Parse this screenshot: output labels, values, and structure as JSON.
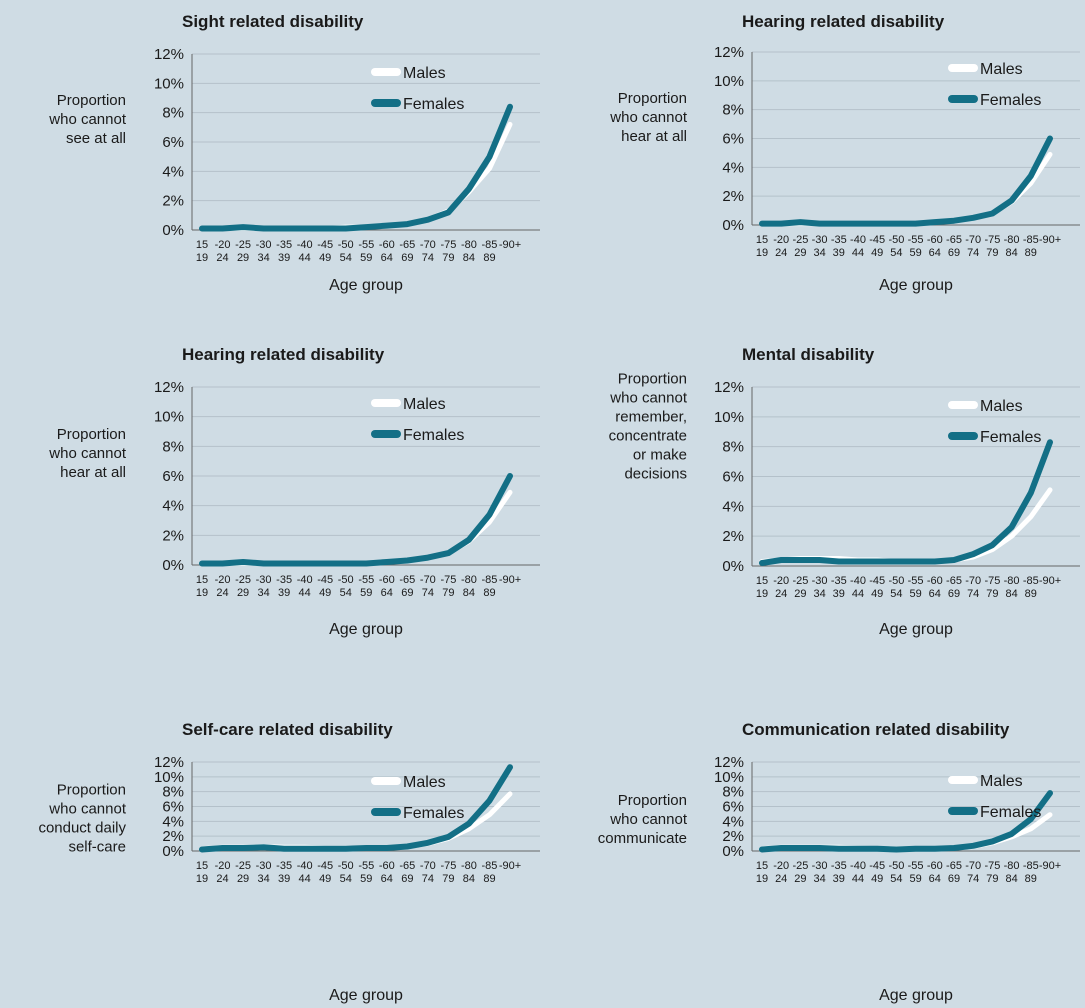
{
  "chart_data": [
    {
      "type": "line",
      "title": "Sight related disability",
      "ylabel": [
        "Proportion",
        "who cannot",
        "see at all"
      ],
      "xlabel": "Age group",
      "x_top": [
        "15",
        "-20",
        "-25",
        "-30",
        "-35",
        "-40",
        "-45",
        "-50",
        "-55",
        "-60",
        "-65",
        "-70",
        "-75",
        "-80",
        "-85",
        "-90+"
      ],
      "x_bottom": [
        "19",
        "24",
        "29",
        "34",
        "39",
        "44",
        "49",
        "54",
        "59",
        "64",
        "69",
        "74",
        "79",
        "84",
        "89",
        ""
      ],
      "yticks": [
        "0%",
        "2%",
        "4%",
        "6%",
        "8%",
        "10%",
        "12%"
      ],
      "ylim": [
        0,
        12
      ],
      "legend": [
        "Males",
        "Females"
      ],
      "series": [
        {
          "name": "Males",
          "color": "#ffffff",
          "values": [
            0.1,
            0.1,
            0.1,
            0.1,
            0.1,
            0.1,
            0.1,
            0.2,
            0.2,
            0.3,
            0.4,
            0.7,
            1.3,
            2.6,
            4.2,
            7.2
          ]
        },
        {
          "name": "Females",
          "color": "#136f86",
          "values": [
            0.1,
            0.1,
            0.2,
            0.1,
            0.1,
            0.1,
            0.1,
            0.1,
            0.2,
            0.3,
            0.4,
            0.7,
            1.2,
            2.8,
            5.0,
            8.4
          ]
        }
      ]
    },
    {
      "type": "line",
      "title": "Hearing related disability",
      "ylabel": [
        "Proportion",
        "who cannot",
        "hear at all"
      ],
      "xlabel": "Age group",
      "x_top": [
        "15",
        "-20",
        "-25",
        "-30",
        "-35",
        "-40",
        "-45",
        "-50",
        "-55",
        "-60",
        "-65",
        "-70",
        "-75",
        "-80",
        "-85",
        "-90+"
      ],
      "x_bottom": [
        "19",
        "24",
        "29",
        "34",
        "39",
        "44",
        "49",
        "54",
        "59",
        "64",
        "69",
        "74",
        "79",
        "84",
        "89",
        ""
      ],
      "yticks": [
        "0%",
        "2%",
        "4%",
        "6%",
        "8%",
        "10%",
        "12%"
      ],
      "ylim": [
        0,
        12
      ],
      "legend": [
        "Males",
        "Females"
      ],
      "series": [
        {
          "name": "Males",
          "color": "#ffffff",
          "values": [
            0.1,
            0.1,
            0.1,
            0.1,
            0.1,
            0.1,
            0.1,
            0.1,
            0.1,
            0.2,
            0.3,
            0.5,
            0.8,
            1.6,
            2.9,
            4.9
          ]
        },
        {
          "name": "Females",
          "color": "#136f86",
          "values": [
            0.1,
            0.1,
            0.2,
            0.1,
            0.1,
            0.1,
            0.1,
            0.1,
            0.1,
            0.2,
            0.3,
            0.5,
            0.8,
            1.7,
            3.4,
            6.0
          ]
        }
      ]
    },
    {
      "type": "line",
      "title": "Hearing related disability",
      "ylabel": [
        "Proportion",
        "who cannot",
        "hear at all"
      ],
      "xlabel": "Age group",
      "x_top": [
        "15",
        "-20",
        "-25",
        "-30",
        "-35",
        "-40",
        "-45",
        "-50",
        "-55",
        "-60",
        "-65",
        "-70",
        "-75",
        "-80",
        "-85",
        "-90+"
      ],
      "x_bottom": [
        "19",
        "24",
        "29",
        "34",
        "39",
        "44",
        "49",
        "54",
        "59",
        "64",
        "69",
        "74",
        "79",
        "84",
        "89",
        ""
      ],
      "yticks": [
        "0%",
        "2%",
        "4%",
        "6%",
        "8%",
        "10%",
        "12%"
      ],
      "ylim": [
        0,
        12
      ],
      "legend": [
        "Males",
        "Females"
      ],
      "series": [
        {
          "name": "Males",
          "color": "#ffffff",
          "values": [
            0.1,
            0.1,
            0.1,
            0.1,
            0.1,
            0.1,
            0.1,
            0.1,
            0.1,
            0.2,
            0.3,
            0.5,
            0.8,
            1.6,
            2.9,
            4.9
          ]
        },
        {
          "name": "Females",
          "color": "#136f86",
          "values": [
            0.1,
            0.1,
            0.2,
            0.1,
            0.1,
            0.1,
            0.1,
            0.1,
            0.1,
            0.2,
            0.3,
            0.5,
            0.8,
            1.7,
            3.4,
            6.0
          ]
        }
      ]
    },
    {
      "type": "line",
      "title": "Mental disability",
      "ylabel": [
        "Proportion",
        "who cannot",
        "remember,",
        "concentrate",
        "or make",
        "decisions"
      ],
      "xlabel": "Age group",
      "x_top": [
        "15",
        "-20",
        "-25",
        "-30",
        "-35",
        "-40",
        "-45",
        "-50",
        "-55",
        "-60",
        "-65",
        "-70",
        "-75",
        "-80",
        "-85",
        "-90+"
      ],
      "x_bottom": [
        "19",
        "24",
        "29",
        "34",
        "39",
        "44",
        "49",
        "54",
        "59",
        "64",
        "69",
        "74",
        "79",
        "84",
        "89",
        ""
      ],
      "yticks": [
        "0%",
        "2%",
        "4%",
        "6%",
        "8%",
        "10%",
        "12%"
      ],
      "ylim": [
        0,
        12
      ],
      "legend": [
        "Males",
        "Females"
      ],
      "series": [
        {
          "name": "Males",
          "color": "#ffffff",
          "values": [
            0.3,
            0.4,
            0.5,
            0.5,
            0.5,
            0.4,
            0.4,
            0.3,
            0.3,
            0.3,
            0.4,
            0.6,
            1.1,
            2.0,
            3.3,
            5.1
          ]
        },
        {
          "name": "Females",
          "color": "#136f86",
          "values": [
            0.2,
            0.4,
            0.4,
            0.4,
            0.3,
            0.3,
            0.3,
            0.3,
            0.3,
            0.3,
            0.4,
            0.8,
            1.4,
            2.6,
            4.9,
            8.3
          ]
        }
      ]
    },
    {
      "type": "line",
      "title": "Self-care related disability",
      "ylabel": [
        "Proportion",
        "who cannot",
        "conduct daily",
        "self-care"
      ],
      "xlabel": "Age group",
      "x_top": [
        "15",
        "-20",
        "-25",
        "-30",
        "-35",
        "-40",
        "-45",
        "-50",
        "-55",
        "-60",
        "-65",
        "-70",
        "-75",
        "-80",
        "-85",
        "-90+"
      ],
      "x_bottom": [
        "19",
        "24",
        "29",
        "34",
        "39",
        "44",
        "49",
        "54",
        "59",
        "64",
        "69",
        "74",
        "79",
        "84",
        "89",
        ""
      ],
      "yticks": [
        "0%",
        "2%",
        "4%",
        "6%",
        "8%",
        "10%",
        "12%"
      ],
      "ylim": [
        0,
        12
      ],
      "legend": [
        "Males",
        "Females"
      ],
      "series": [
        {
          "name": "Males",
          "color": "#ffffff",
          "values": [
            0.3,
            0.5,
            0.5,
            0.6,
            0.5,
            0.5,
            0.4,
            0.4,
            0.4,
            0.4,
            0.6,
            1.0,
            1.7,
            3.0,
            4.9,
            7.7
          ]
        },
        {
          "name": "Females",
          "color": "#136f86",
          "values": [
            0.2,
            0.4,
            0.4,
            0.5,
            0.3,
            0.3,
            0.3,
            0.3,
            0.4,
            0.4,
            0.6,
            1.1,
            1.9,
            3.7,
            6.8,
            11.3
          ]
        }
      ]
    },
    {
      "type": "line",
      "title": "Communication related disability",
      "ylabel": [
        "Proportion",
        "who cannot",
        "communicate"
      ],
      "xlabel": "Age group",
      "x_top": [
        "15",
        "-20",
        "-25",
        "-30",
        "-35",
        "-40",
        "-45",
        "-50",
        "-55",
        "-60",
        "-65",
        "-70",
        "-75",
        "-80",
        "-85",
        "-90+"
      ],
      "x_bottom": [
        "19",
        "24",
        "29",
        "34",
        "39",
        "44",
        "49",
        "54",
        "59",
        "64",
        "69",
        "74",
        "79",
        "84",
        "89",
        ""
      ],
      "yticks": [
        "0%",
        "2%",
        "4%",
        "6%",
        "8%",
        "10%",
        "12%"
      ],
      "ylim": [
        0,
        12
      ],
      "legend": [
        "Males",
        "Females"
      ],
      "series": [
        {
          "name": "Males",
          "color": "#ffffff",
          "values": [
            0.3,
            0.5,
            0.5,
            0.5,
            0.5,
            0.4,
            0.3,
            0.3,
            0.3,
            0.3,
            0.4,
            0.6,
            1.1,
            1.9,
            3.0,
            4.9
          ]
        },
        {
          "name": "Females",
          "color": "#136f86",
          "values": [
            0.2,
            0.4,
            0.4,
            0.4,
            0.3,
            0.3,
            0.3,
            0.2,
            0.3,
            0.3,
            0.4,
            0.7,
            1.3,
            2.3,
            4.3,
            7.8
          ]
        }
      ]
    }
  ]
}
